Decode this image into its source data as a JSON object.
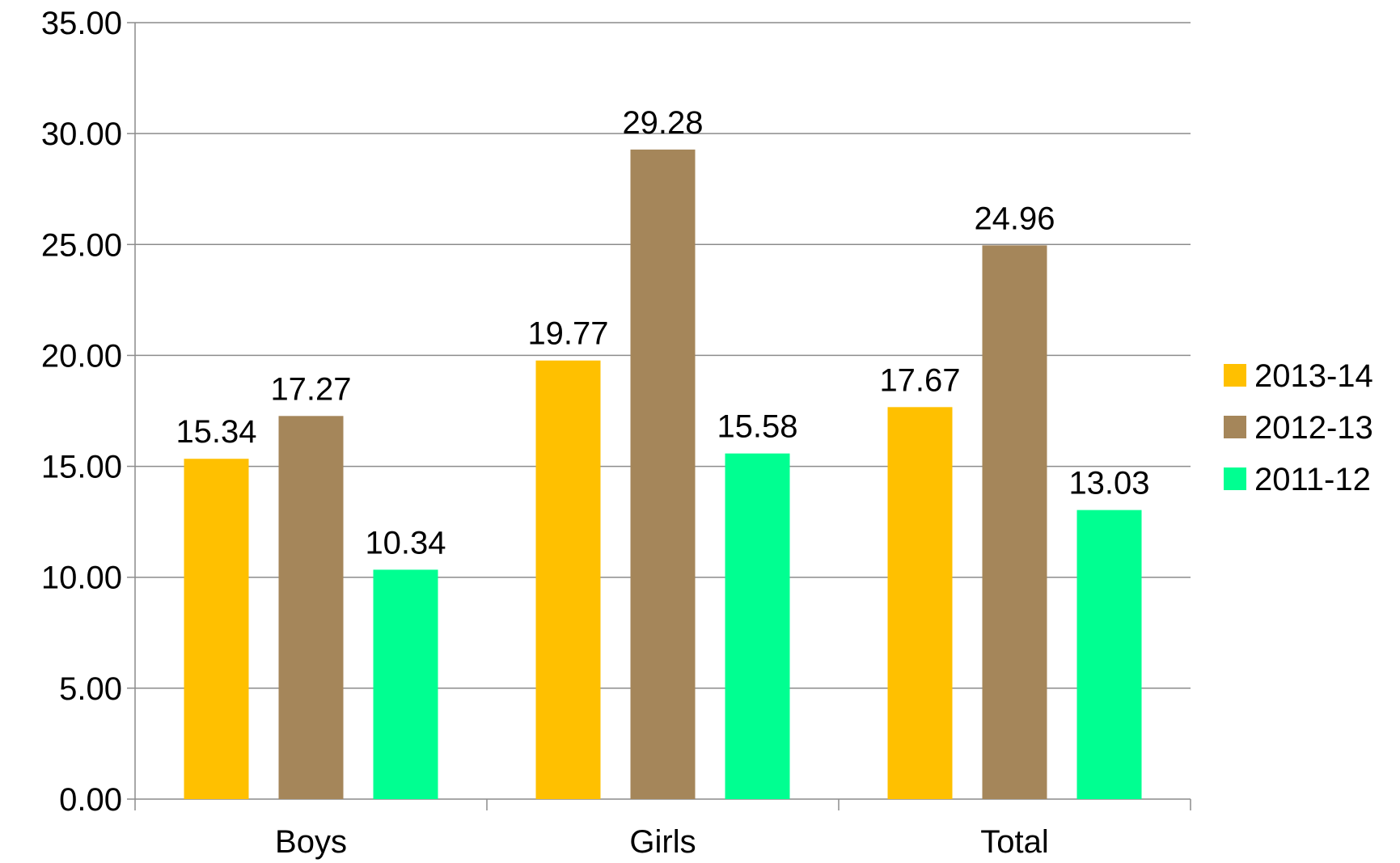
{
  "chart_data": {
    "type": "bar",
    "title": "",
    "xlabel": "",
    "ylabel": "",
    "categories": [
      "Boys",
      "Girls",
      "Total"
    ],
    "ylim": [
      0,
      35
    ],
    "yticks": [
      0,
      5,
      10,
      15,
      20,
      25,
      30,
      35
    ],
    "ytick_labels": [
      "0.00",
      "5.00",
      "10.00",
      "15.00",
      "20.00",
      "25.00",
      "30.00",
      "35.00"
    ],
    "grid": true,
    "legend_position": "right",
    "series": [
      {
        "name": "2013-14",
        "color": "#FFC000",
        "values": [
          15.34,
          19.77,
          17.67
        ],
        "labels": [
          "15.34",
          "19.77",
          "17.67"
        ]
      },
      {
        "name": "2012-13",
        "color": "#A5865A",
        "values": [
          17.27,
          29.28,
          24.96
        ],
        "labels": [
          "17.27",
          "29.28",
          "24.96"
        ]
      },
      {
        "name": "2011-12",
        "color": "#00FF91",
        "values": [
          10.34,
          15.58,
          13.03
        ],
        "labels": [
          "10.34",
          "15.58",
          "13.03"
        ]
      }
    ]
  }
}
